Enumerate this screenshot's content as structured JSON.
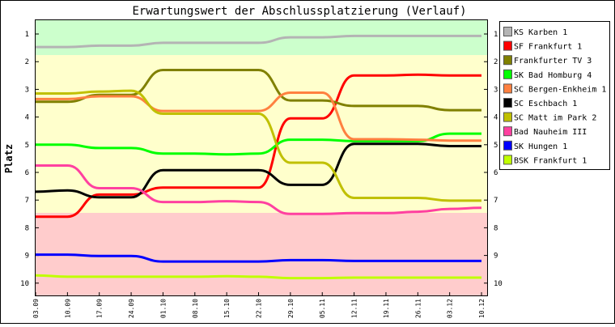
{
  "chart_data": {
    "type": "line",
    "title": "Erwartungswert der Abschlussplatzierung (Verlauf)",
    "xlabel": "",
    "ylabel": "Platz",
    "x": [
      "03.09",
      "10.09",
      "17.09",
      "24.09",
      "01.10",
      "08.10",
      "15.10",
      "22.10",
      "29.10",
      "05.11",
      "12.11",
      "19.11",
      "26.11",
      "03.12",
      "10.12"
    ],
    "y_ticks": [
      1,
      2,
      3,
      4,
      5,
      6,
      7,
      8,
      9,
      10
    ],
    "ylim": [
      0.5,
      10.5
    ],
    "y_inverted": true,
    "grid": false,
    "legend_position": "right",
    "bands": [
      {
        "color": "#ccffcc"
      },
      {
        "color": "#ffffcc"
      },
      {
        "color": "#ffcccc"
      }
    ],
    "series": [
      {
        "name": "KS Karben 1",
        "color": "#b4b4b4",
        "values": [
          1.47,
          1.47,
          1.42,
          1.42,
          1.32,
          1.32,
          1.32,
          1.32,
          1.12,
          1.12,
          1.07,
          1.07,
          1.07,
          1.07,
          1.07
        ]
      },
      {
        "name": "SF Frankfurt 1",
        "color": "#ff0000",
        "values": [
          7.6,
          7.6,
          6.8,
          6.8,
          6.55,
          6.55,
          6.55,
          6.55,
          4.05,
          4.05,
          2.5,
          2.5,
          2.47,
          2.5,
          2.5
        ]
      },
      {
        "name": "Frankfurter TV 3",
        "color": "#808000",
        "values": [
          3.45,
          3.45,
          3.2,
          3.2,
          2.3,
          2.3,
          2.3,
          2.3,
          3.4,
          3.4,
          3.6,
          3.6,
          3.6,
          3.75,
          3.75
        ]
      },
      {
        "name": "SK Bad Homburg 4",
        "color": "#00ff00",
        "values": [
          5.0,
          5.0,
          5.12,
          5.12,
          5.32,
          5.32,
          5.35,
          5.32,
          4.82,
          4.82,
          4.87,
          4.87,
          4.87,
          4.6,
          4.6
        ]
      },
      {
        "name": "SC Bergen-Enkheim 1",
        "color": "#ff8040",
        "values": [
          3.35,
          3.35,
          3.25,
          3.25,
          3.78,
          3.78,
          3.78,
          3.78,
          3.12,
          3.12,
          4.8,
          4.8,
          4.82,
          4.85,
          4.85
        ]
      },
      {
        "name": "SC Eschbach 1",
        "color": "#000000",
        "values": [
          6.7,
          6.65,
          6.9,
          6.9,
          5.92,
          5.92,
          5.92,
          5.92,
          6.45,
          6.45,
          4.97,
          4.97,
          4.97,
          5.05,
          5.05
        ]
      },
      {
        "name": "SC Matt im Park 2",
        "color": "#c0c000",
        "values": [
          3.15,
          3.15,
          3.08,
          3.05,
          3.88,
          3.88,
          3.88,
          3.88,
          5.65,
          5.65,
          6.92,
          6.92,
          6.92,
          7.02,
          7.02
        ]
      },
      {
        "name": "Bad Nauheim III",
        "color": "#ff40a0",
        "values": [
          5.75,
          5.75,
          6.57,
          6.57,
          7.07,
          7.07,
          7.04,
          7.07,
          7.5,
          7.5,
          7.47,
          7.47,
          7.42,
          7.32,
          7.28
        ]
      },
      {
        "name": "SK Hungen 1",
        "color": "#0000ff",
        "values": [
          8.97,
          8.97,
          9.02,
          9.02,
          9.22,
          9.22,
          9.22,
          9.22,
          9.17,
          9.17,
          9.2,
          9.2,
          9.2,
          9.2,
          9.2
        ]
      },
      {
        "name": "BSK Frankfurt 1",
        "color": "#c0ff00",
        "values": [
          9.72,
          9.77,
          9.77,
          9.77,
          9.77,
          9.77,
          9.75,
          9.77,
          9.82,
          9.82,
          9.8,
          9.8,
          9.8,
          9.8,
          9.8
        ]
      }
    ]
  }
}
